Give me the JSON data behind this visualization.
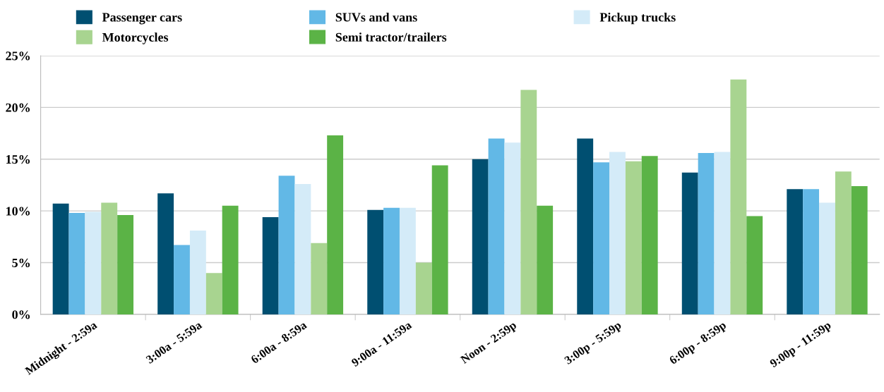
{
  "chart_data": {
    "type": "bar",
    "categories": [
      "Midnight - 2:59a",
      "3:00a - 5:59a",
      "6:00a - 8:59a",
      "9:00a - 11:59a",
      "Noon - 2:59p",
      "3:00p - 5:59p",
      "6:00p - 8:59p",
      "9:00p - 11:59p"
    ],
    "series": [
      {
        "name": "Passenger cars",
        "color": "#004f71",
        "values": [
          10.7,
          11.7,
          9.4,
          10.1,
          15.0,
          17.0,
          13.7,
          12.1
        ]
      },
      {
        "name": "SUVs and vans",
        "color": "#62b8e6",
        "values": [
          9.8,
          6.7,
          13.4,
          10.3,
          17.0,
          14.7,
          15.6,
          12.1
        ]
      },
      {
        "name": "Pickup trucks",
        "color": "#d4ebf8",
        "values": [
          9.9,
          8.1,
          12.6,
          10.3,
          16.6,
          15.7,
          15.7,
          10.8
        ]
      },
      {
        "name": "Motorcycles",
        "color": "#a8d490",
        "values": [
          10.8,
          4.0,
          6.9,
          5.0,
          21.7,
          14.8,
          22.7,
          13.8
        ]
      },
      {
        "name": "Semi tractor/trailers",
        "color": "#5bb346",
        "values": [
          9.6,
          10.5,
          17.3,
          14.4,
          10.5,
          15.3,
          9.5,
          12.4
        ]
      }
    ],
    "ylim": [
      0,
      25
    ],
    "yticks": [
      {
        "value": 0,
        "label": "0%"
      },
      {
        "value": 5,
        "label": "5%"
      },
      {
        "value": 10,
        "label": "10%"
      },
      {
        "value": 15,
        "label": "15%"
      },
      {
        "value": 20,
        "label": "20%"
      },
      {
        "value": 25,
        "label": "25%"
      }
    ],
    "grid": "y",
    "legend": "top"
  }
}
